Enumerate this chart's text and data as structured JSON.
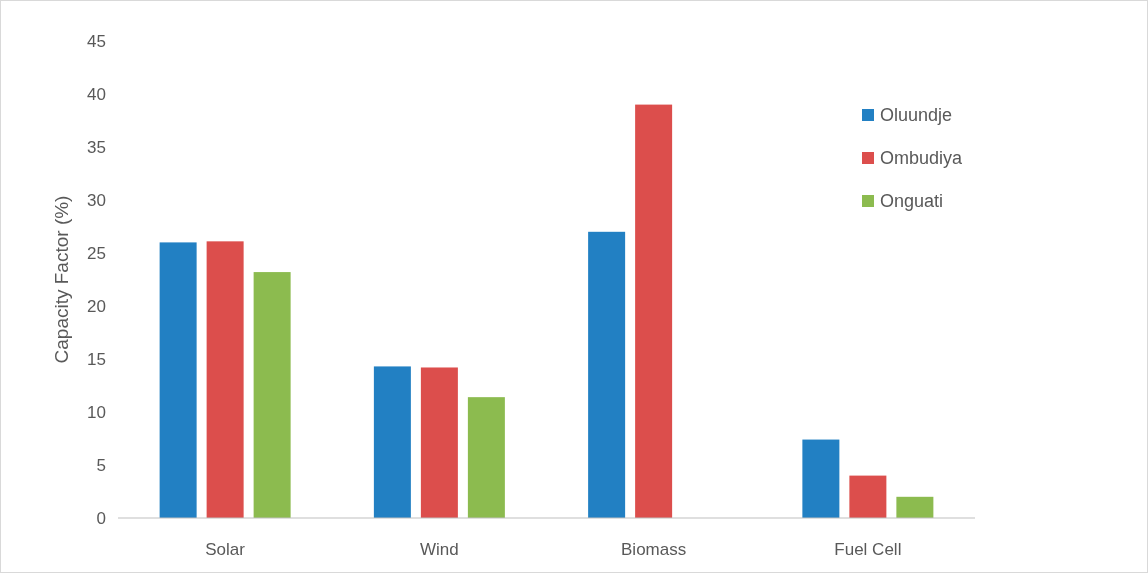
{
  "chart_data": {
    "type": "bar",
    "ylabel": "Capacity Factor (%)",
    "categories": [
      "Solar",
      "Wind",
      "Biomass",
      "Fuel Cell"
    ],
    "series": [
      {
        "name": "Oluundje",
        "color": "#2280c3",
        "values": [
          26,
          14.3,
          27,
          7.4
        ]
      },
      {
        "name": "Ombudiya",
        "color": "#dc4e4c",
        "values": [
          26.1,
          14.2,
          39,
          4
        ]
      },
      {
        "name": "Onguati",
        "color": "#8cbb4f",
        "values": [
          23.2,
          11.4,
          null,
          2
        ]
      }
    ],
    "ylim": [
      0,
      45
    ],
    "yticks": [
      0,
      5,
      10,
      15,
      20,
      25,
      30,
      35,
      40,
      45
    ],
    "grid": false,
    "legend": "top right"
  }
}
